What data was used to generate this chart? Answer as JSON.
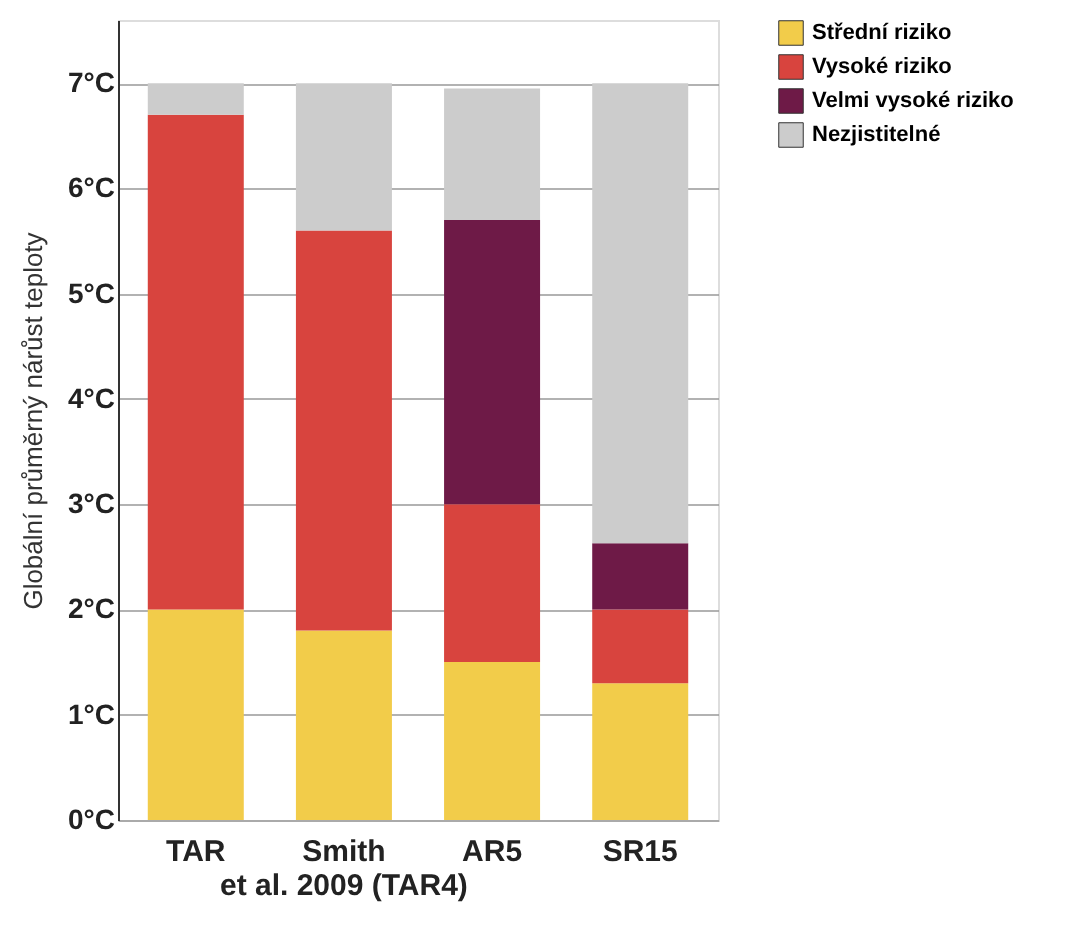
{
  "chart_data": {
    "type": "bar",
    "stacked": true,
    "ylabel": "Globální průměrný nárůst teploty",
    "categories": [
      "TAR",
      "Smith\net al. 2009 (TAR4)",
      "AR5",
      "SR15"
    ],
    "series": [
      {
        "name": "Střední riziko",
        "color": "#f2cc4a",
        "values": [
          2.0,
          1.8,
          1.5,
          1.3
        ]
      },
      {
        "name": "Vysoké riziko",
        "color": "#d8443e",
        "values": [
          4.7,
          3.8,
          1.5,
          0.7
        ]
      },
      {
        "name": "Velmi vysoké riziko",
        "color": "#6e1a47",
        "values": [
          null,
          null,
          2.7,
          0.63
        ]
      },
      {
        "name": "Nezjistitelné",
        "color": "#cccccc",
        "values": [
          0.3,
          1.4,
          1.25,
          4.37
        ]
      }
    ],
    "ylim": [
      0,
      7.6
    ],
    "yticks": [
      {
        "value": 0,
        "label": "0°C"
      },
      {
        "value": 1,
        "label": "1°C"
      },
      {
        "value": 2,
        "label": "2°C"
      },
      {
        "value": 3,
        "label": "3°C"
      },
      {
        "value": 4,
        "label": "4°C"
      },
      {
        "value": 5,
        "label": "5°C"
      },
      {
        "value": 6,
        "label": "6°C"
      },
      {
        "value": 7,
        "label": "7°C"
      }
    ],
    "grid": "y",
    "legend": "top right"
  }
}
